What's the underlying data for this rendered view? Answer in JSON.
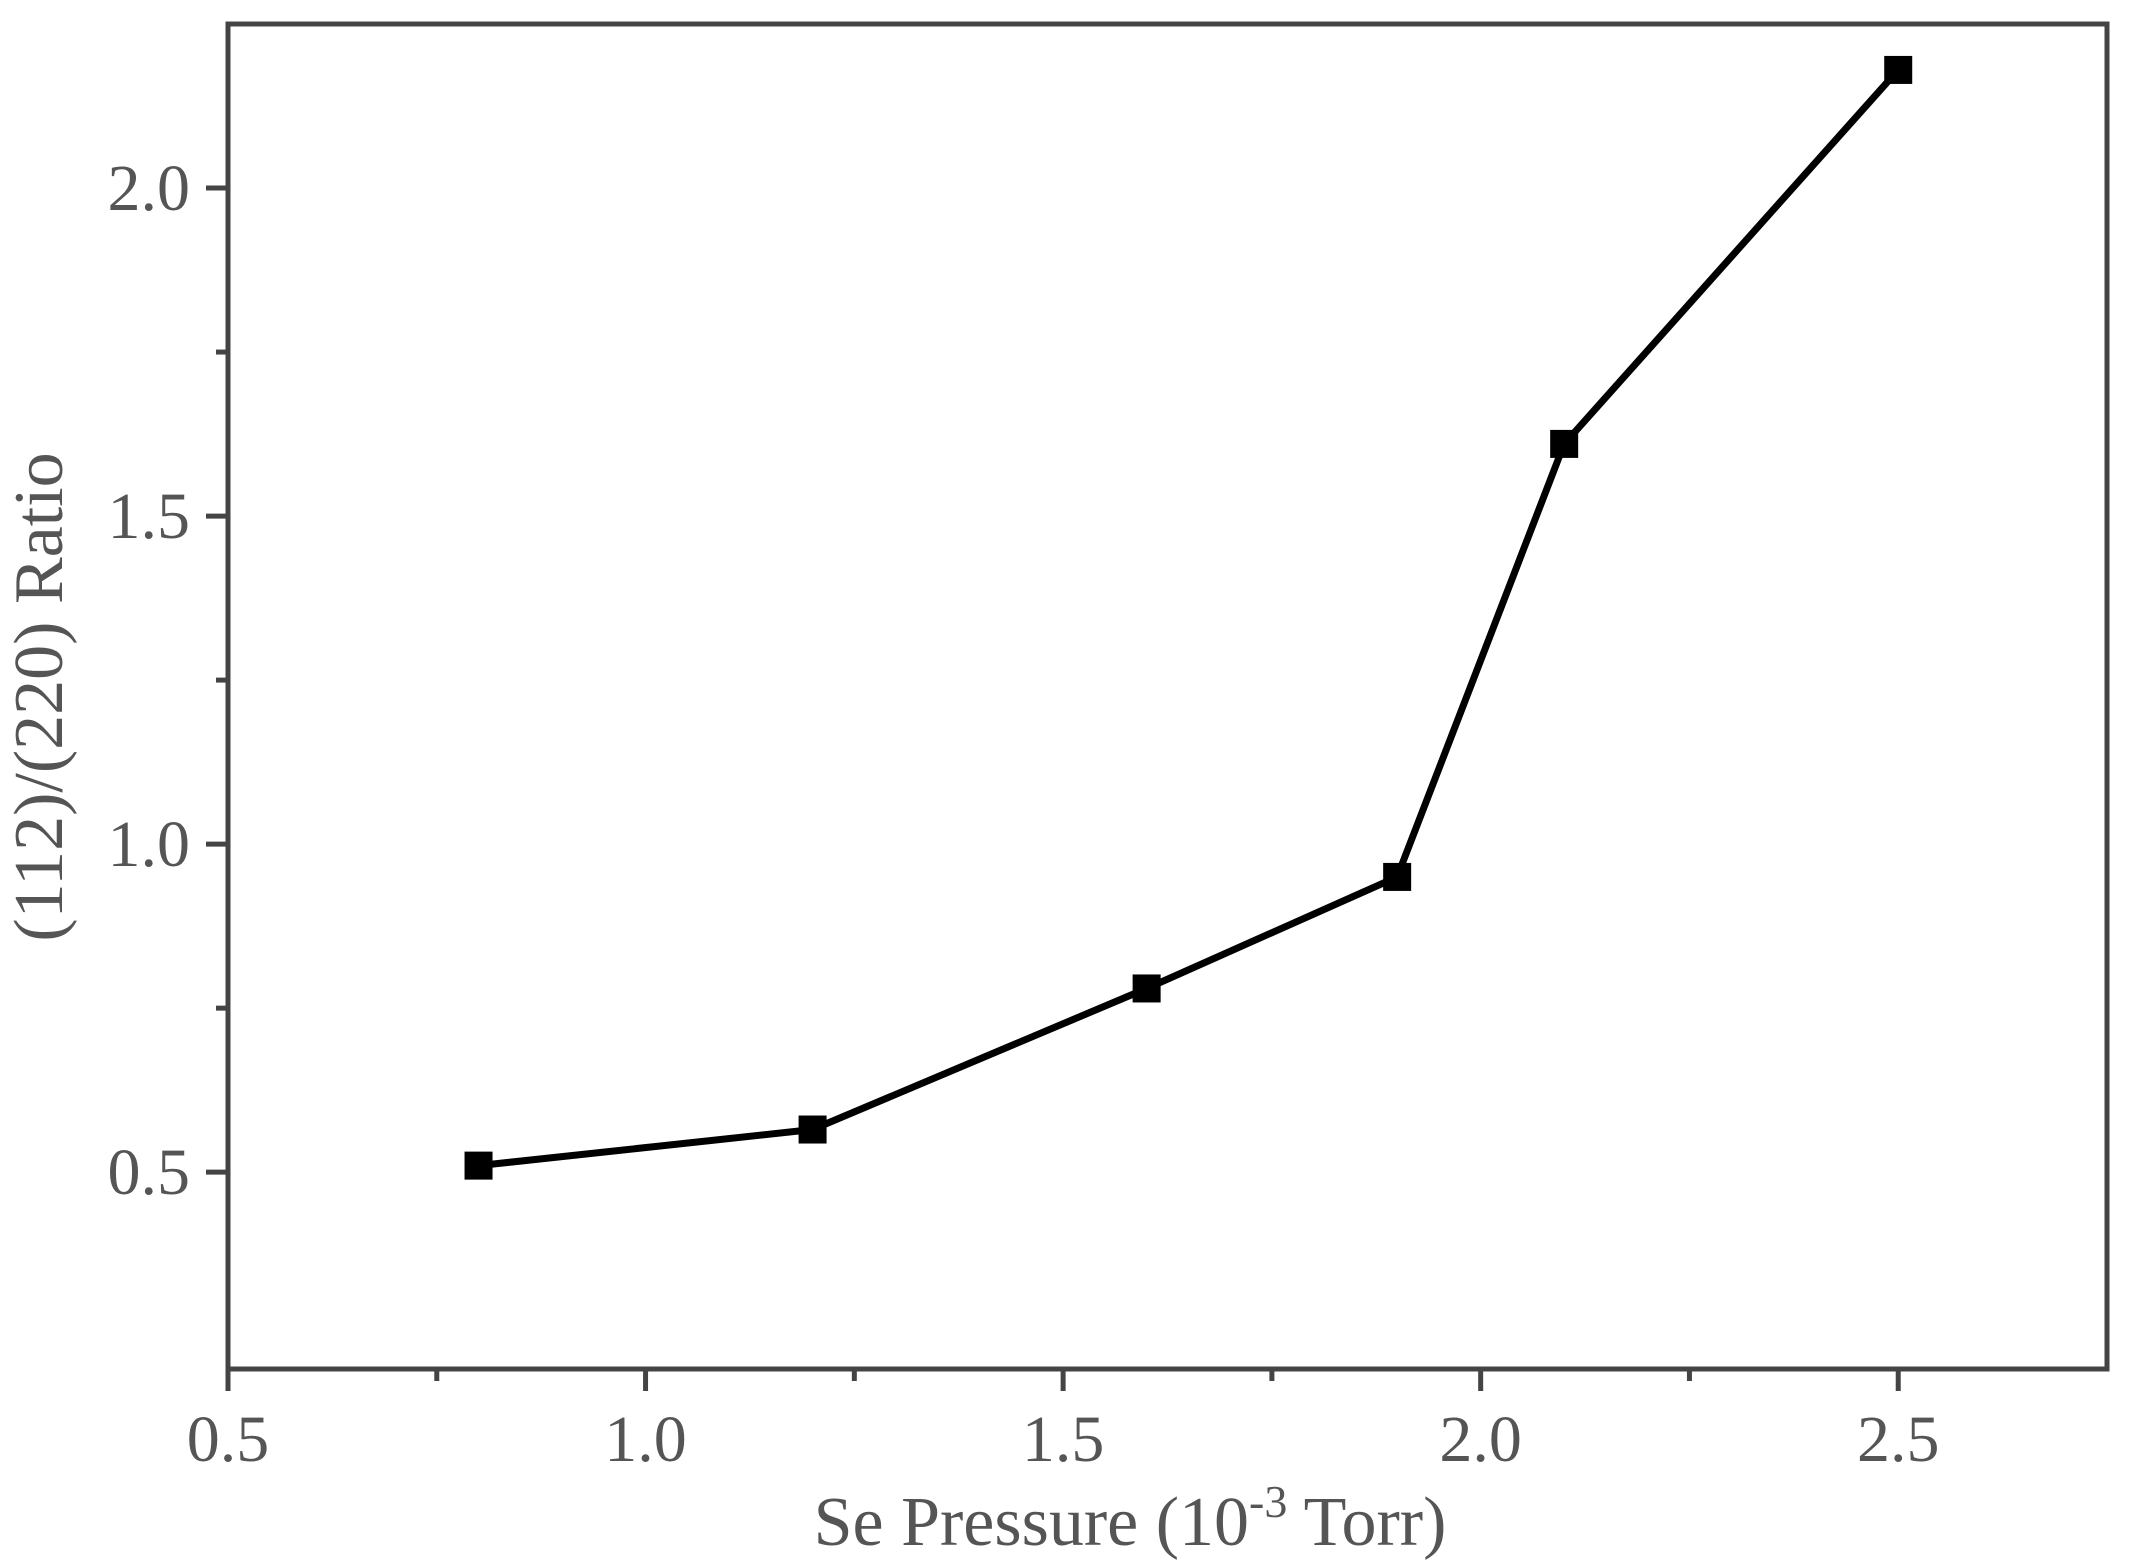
{
  "chart_data": {
    "type": "line",
    "xlabel": "Se Pressure (10",
    "xlabel_sup": "-3",
    "xlabel_tail": " Torr)",
    "ylabel": "(112)/(220) Ratio",
    "xlim": [
      0.5,
      2.75
    ],
    "ylim": [
      0.2,
      2.25
    ],
    "x_ticks": [
      0.5,
      1.0,
      1.5,
      2.0,
      2.5
    ],
    "x_tick_labels": [
      "0.5",
      "1.0",
      "1.5",
      "2.0",
      "2.5"
    ],
    "x_minor_ticks": [
      0.75,
      1.25,
      1.75,
      2.25
    ],
    "y_ticks": [
      0.5,
      1.0,
      1.5,
      2.0
    ],
    "y_tick_labels": [
      "0.5",
      "1.0",
      "1.5",
      "2.0"
    ],
    "y_minor_ticks": [
      0.75,
      1.25,
      1.75
    ],
    "grid": false,
    "series": [
      {
        "marker": "square",
        "color": "#000000",
        "x": [
          0.8,
          1.2,
          1.6,
          1.9,
          2.1,
          2.5
        ],
        "y": [
          0.51,
          0.565,
          0.78,
          0.95,
          1.61,
          2.18
        ]
      }
    ]
  }
}
